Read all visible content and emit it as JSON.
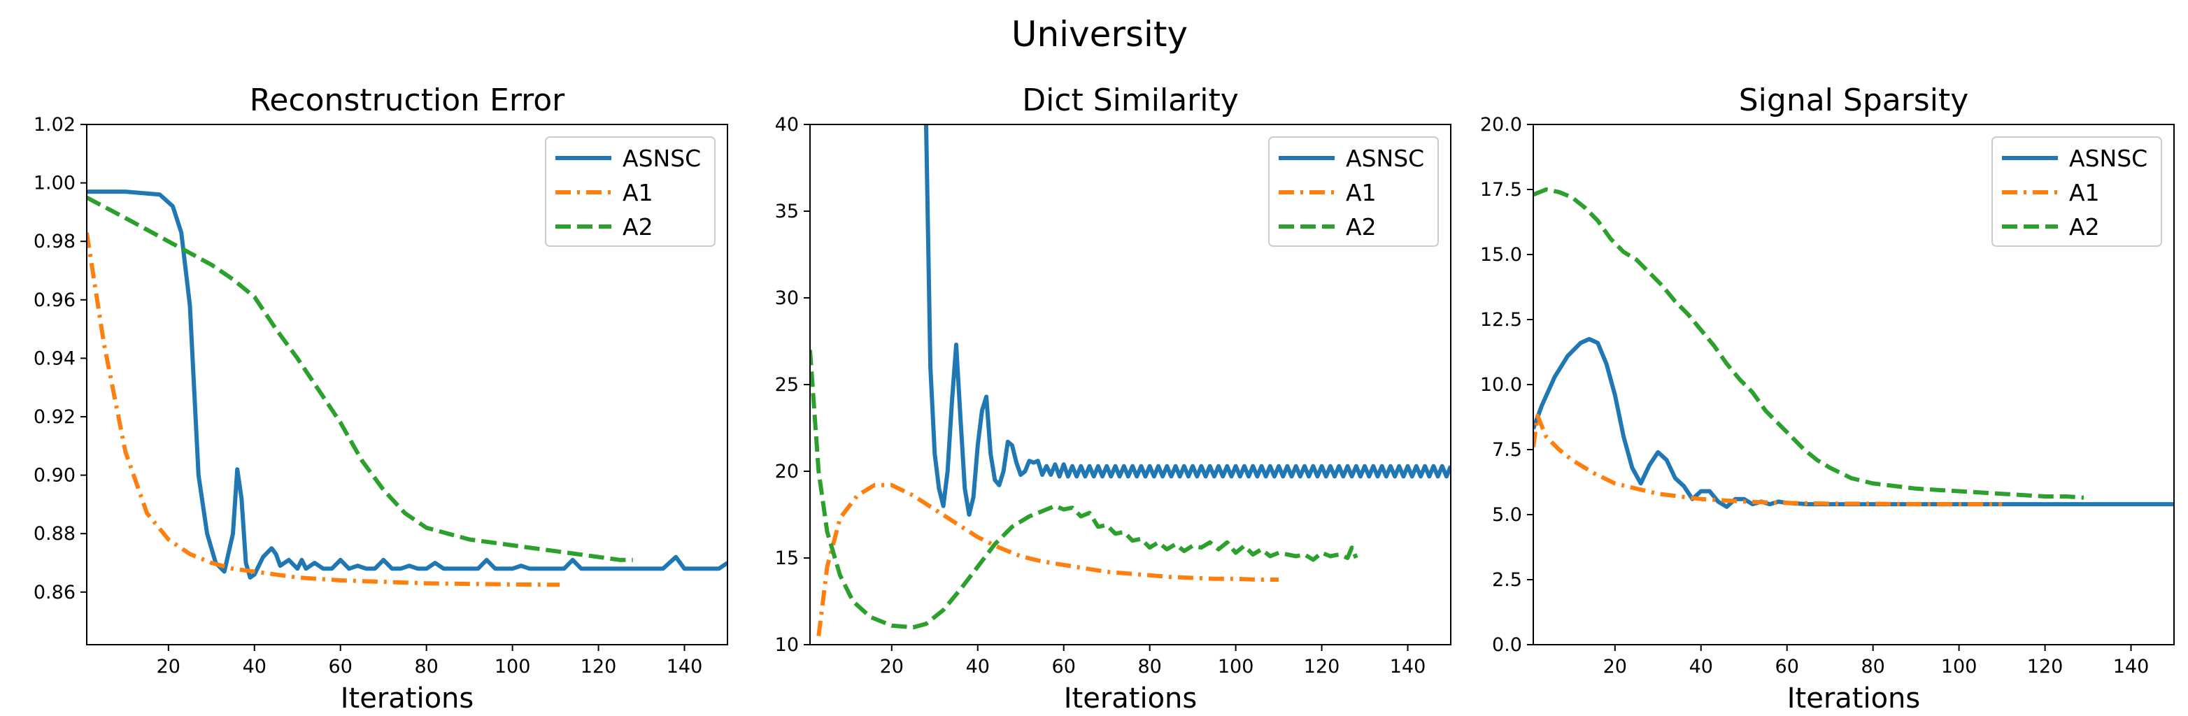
{
  "figure_title": "University",
  "chart_data": [
    {
      "type": "line",
      "title": "Reconstruction Error",
      "xlabel": "Iterations",
      "ylabel": "",
      "xlim": [
        1,
        150
      ],
      "ylim": [
        0.842,
        1.02
      ],
      "xticks": [
        20,
        40,
        60,
        80,
        100,
        120,
        140
      ],
      "yticks": [
        0.86,
        0.88,
        0.9,
        0.92,
        0.94,
        0.96,
        0.98,
        1.0,
        1.02
      ],
      "ytick_decimals": 2,
      "legend": "top-right",
      "series": [
        {
          "name": "ASNSC",
          "color": "#1f77b4",
          "style": "solid",
          "x": [
            1,
            10,
            18,
            21,
            23,
            25,
            27,
            29,
            31,
            33,
            35,
            36,
            37,
            38,
            39,
            40,
            42,
            44,
            45,
            46,
            48,
            50,
            51,
            52,
            54,
            56,
            58,
            60,
            62,
            64,
            66,
            68,
            70,
            72,
            74,
            76,
            78,
            80,
            82,
            84,
            86,
            88,
            90,
            92,
            94,
            96,
            98,
            100,
            102,
            104,
            106,
            108,
            110,
            112,
            114,
            116,
            118,
            120,
            125,
            130,
            135,
            138,
            140,
            145,
            148,
            150
          ],
          "y": [
            0.997,
            0.997,
            0.996,
            0.992,
            0.983,
            0.958,
            0.9,
            0.88,
            0.87,
            0.867,
            0.88,
            0.902,
            0.892,
            0.87,
            0.865,
            0.866,
            0.872,
            0.875,
            0.873,
            0.869,
            0.871,
            0.868,
            0.871,
            0.868,
            0.87,
            0.868,
            0.868,
            0.871,
            0.868,
            0.869,
            0.868,
            0.868,
            0.871,
            0.868,
            0.868,
            0.869,
            0.868,
            0.868,
            0.87,
            0.868,
            0.868,
            0.868,
            0.868,
            0.868,
            0.871,
            0.868,
            0.868,
            0.868,
            0.869,
            0.868,
            0.868,
            0.868,
            0.868,
            0.868,
            0.871,
            0.868,
            0.868,
            0.868,
            0.868,
            0.868,
            0.868,
            0.872,
            0.868,
            0.868,
            0.868,
            0.87
          ]
        },
        {
          "name": "A1",
          "color": "#ff7f0e",
          "style": "dashdot",
          "x": [
            1,
            5,
            10,
            15,
            20,
            25,
            30,
            35,
            40,
            50,
            60,
            70,
            80,
            90,
            100,
            111
          ],
          "y": [
            0.983,
            0.945,
            0.908,
            0.887,
            0.878,
            0.873,
            0.87,
            0.868,
            0.867,
            0.865,
            0.864,
            0.8635,
            0.863,
            0.8628,
            0.8626,
            0.8625
          ]
        },
        {
          "name": "A2",
          "color": "#2ca02c",
          "style": "dashed",
          "x": [
            1,
            10,
            20,
            30,
            35,
            40,
            45,
            50,
            55,
            60,
            65,
            70,
            75,
            80,
            85,
            90,
            95,
            100,
            105,
            110,
            115,
            120,
            125,
            128
          ],
          "y": [
            0.995,
            0.988,
            0.98,
            0.972,
            0.967,
            0.961,
            0.95,
            0.94,
            0.929,
            0.918,
            0.905,
            0.895,
            0.887,
            0.882,
            0.88,
            0.878,
            0.877,
            0.876,
            0.875,
            0.874,
            0.873,
            0.872,
            0.871,
            0.871
          ]
        }
      ]
    },
    {
      "type": "line",
      "title": "Dict Similarity",
      "xlabel": "Iterations",
      "ylabel": "",
      "xlim": [
        1,
        150
      ],
      "ylim": [
        10,
        40
      ],
      "xticks": [
        20,
        40,
        60,
        80,
        100,
        120,
        140
      ],
      "yticks": [
        10,
        15,
        20,
        25,
        30,
        35,
        40
      ],
      "ytick_decimals": 0,
      "legend": "top-right",
      "series": [
        {
          "name": "ASNSC",
          "color": "#1f77b4",
          "style": "solid",
          "x": [
            28,
            29,
            30,
            31,
            32,
            33,
            34,
            35,
            36,
            37,
            38,
            39,
            40,
            41,
            42,
            43,
            44,
            45,
            46,
            47,
            48,
            49,
            50,
            51,
            52,
            53,
            54,
            55,
            56,
            57,
            58,
            59,
            60,
            61,
            62,
            63,
            64,
            65,
            66,
            67,
            68,
            69,
            70,
            71,
            72,
            73,
            74,
            75,
            76,
            77,
            78,
            79,
            80,
            81,
            82,
            83,
            84,
            85,
            86,
            87,
            88,
            89,
            90,
            91,
            92,
            93,
            94,
            95,
            96,
            97,
            98,
            99,
            100,
            101,
            102,
            103,
            104,
            105,
            106,
            107,
            108,
            109,
            110,
            111,
            112,
            113,
            114,
            115,
            116,
            117,
            118,
            119,
            120,
            121,
            122,
            123,
            124,
            125,
            126,
            127,
            128,
            129,
            130,
            131,
            132,
            133,
            134,
            135,
            136,
            137,
            138,
            139,
            140,
            141,
            142,
            143,
            144,
            145,
            146,
            147,
            148,
            149,
            150
          ],
          "y": [
            40,
            26,
            21,
            19,
            18,
            20,
            24,
            27.3,
            23,
            19,
            17.5,
            18.5,
            21.5,
            23.5,
            24.3,
            21,
            19.5,
            19.2,
            20,
            21.7,
            21.5,
            20.5,
            19.8,
            20,
            20.6,
            20.5,
            20.6,
            19.8,
            20.3,
            19.8,
            20.4,
            19.7,
            20.4,
            19.7,
            20.3,
            19.7,
            20.3,
            19.7,
            20.3,
            19.7,
            20.3,
            19.7,
            20.3,
            19.7,
            20.3,
            19.7,
            20.3,
            19.7,
            20.3,
            19.7,
            20.3,
            19.7,
            20.3,
            19.7,
            20.3,
            19.7,
            20.3,
            19.7,
            20.3,
            19.7,
            20.3,
            19.7,
            20.3,
            19.7,
            20.3,
            19.7,
            20.3,
            19.7,
            20.3,
            19.7,
            20.3,
            19.7,
            20.3,
            19.7,
            20.3,
            19.7,
            20.3,
            19.7,
            20.3,
            19.7,
            20.3,
            19.7,
            20.3,
            19.7,
            20.3,
            19.7,
            20.3,
            19.7,
            20.3,
            19.7,
            20.3,
            19.7,
            20.3,
            19.7,
            20.3,
            19.7,
            20.3,
            19.7,
            20.3,
            19.7,
            20.3,
            19.7,
            20.3,
            19.7,
            20.3,
            19.7,
            20.3,
            19.7,
            20.3,
            19.7,
            20.3,
            19.7,
            20.3,
            19.7,
            20.3,
            19.7,
            20.3,
            19.7,
            20.3,
            19.7,
            20.3,
            19.7,
            20.3
          ]
        },
        {
          "name": "A1",
          "color": "#ff7f0e",
          "style": "dashdot",
          "x": [
            3,
            5,
            8,
            12,
            16,
            20,
            25,
            30,
            35,
            40,
            45,
            50,
            55,
            60,
            65,
            70,
            75,
            80,
            85,
            90,
            95,
            100,
            105,
            110
          ],
          "y": [
            10.5,
            14.5,
            17.3,
            18.6,
            19.2,
            19.2,
            18.6,
            17.8,
            17.0,
            16.2,
            15.6,
            15.1,
            14.8,
            14.6,
            14.4,
            14.2,
            14.1,
            14.0,
            13.9,
            13.85,
            13.8,
            13.8,
            13.75,
            13.75
          ]
        },
        {
          "name": "A2",
          "color": "#2ca02c",
          "style": "dashed",
          "x": [
            1,
            3,
            5,
            8,
            11,
            15,
            20,
            25,
            28,
            32,
            36,
            40,
            44,
            48,
            52,
            56,
            58,
            60,
            62,
            64,
            66,
            68,
            70,
            72,
            74,
            76,
            78,
            80,
            82,
            84,
            86,
            88,
            90,
            92,
            94,
            96,
            98,
            100,
            102,
            104,
            106,
            108,
            110,
            112,
            114,
            116,
            118,
            120,
            122,
            124,
            126,
            127,
            128
          ],
          "y": [
            27,
            20,
            16.5,
            14,
            12.5,
            11.6,
            11.1,
            11.0,
            11.2,
            12,
            13.2,
            14.5,
            15.8,
            16.8,
            17.4,
            17.8,
            18,
            17.8,
            17.9,
            17.4,
            17.6,
            16.8,
            16.9,
            16.4,
            16.5,
            16,
            16.1,
            15.6,
            15.9,
            15.5,
            15.8,
            15.4,
            15.7,
            15.6,
            15.9,
            15.5,
            15.9,
            15.3,
            15.7,
            15.2,
            15.5,
            15.1,
            15.3,
            15.2,
            15.1,
            15.2,
            14.9,
            15.3,
            15.1,
            15.2,
            15.0,
            15.6,
            15.0
          ]
        }
      ]
    },
    {
      "type": "line",
      "title": "Signal Sparsity",
      "xlabel": "Iterations",
      "ylabel": "",
      "xlim": [
        1,
        150
      ],
      "ylim": [
        0,
        20
      ],
      "xticks": [
        20,
        40,
        60,
        80,
        100,
        120,
        140
      ],
      "yticks": [
        0.0,
        2.5,
        5.0,
        7.5,
        10.0,
        12.5,
        15.0,
        17.5,
        20.0
      ],
      "ytick_decimals": 1,
      "legend": "top-right",
      "series": [
        {
          "name": "ASNSC",
          "color": "#1f77b4",
          "style": "solid",
          "x": [
            1,
            3,
            6,
            9,
            12,
            14,
            16,
            18,
            20,
            22,
            24,
            26,
            28,
            30,
            32,
            34,
            36,
            38,
            40,
            42,
            44,
            46,
            48,
            50,
            52,
            54,
            56,
            58,
            60,
            65,
            70,
            80,
            90,
            100,
            110,
            120,
            130,
            140,
            150
          ],
          "y": [
            8.3,
            9.2,
            10.3,
            11.1,
            11.6,
            11.75,
            11.6,
            10.8,
            9.6,
            8.0,
            6.8,
            6.2,
            6.9,
            7.4,
            7.1,
            6.4,
            6.1,
            5.6,
            5.9,
            5.9,
            5.5,
            5.3,
            5.6,
            5.6,
            5.4,
            5.5,
            5.4,
            5.5,
            5.45,
            5.4,
            5.4,
            5.4,
            5.4,
            5.4,
            5.4,
            5.4,
            5.4,
            5.4,
            5.4
          ]
        },
        {
          "name": "A1",
          "color": "#ff7f0e",
          "style": "dashdot",
          "x": [
            1,
            2,
            4,
            7,
            10,
            15,
            20,
            25,
            30,
            40,
            50,
            60,
            70,
            80,
            90,
            100,
            110
          ],
          "y": [
            7.6,
            8.8,
            8.0,
            7.5,
            7.1,
            6.6,
            6.2,
            6.0,
            5.8,
            5.6,
            5.5,
            5.45,
            5.42,
            5.42,
            5.4,
            5.4,
            5.4
          ]
        },
        {
          "name": "A2",
          "color": "#2ca02c",
          "style": "dashed",
          "x": [
            1,
            4,
            7,
            10,
            13,
            16,
            19,
            22,
            25,
            28,
            31,
            34,
            37,
            40,
            43,
            46,
            49,
            52,
            55,
            58,
            61,
            64,
            67,
            70,
            75,
            80,
            85,
            90,
            95,
            100,
            105,
            110,
            115,
            120,
            125,
            129
          ],
          "y": [
            17.3,
            17.5,
            17.4,
            17.2,
            16.8,
            16.3,
            15.6,
            15.1,
            14.8,
            14.3,
            13.8,
            13.2,
            12.7,
            12.1,
            11.5,
            10.8,
            10.2,
            9.7,
            9.0,
            8.5,
            8.0,
            7.5,
            7.1,
            6.8,
            6.4,
            6.2,
            6.1,
            6.0,
            5.95,
            5.9,
            5.85,
            5.8,
            5.75,
            5.7,
            5.7,
            5.65
          ]
        }
      ]
    }
  ]
}
